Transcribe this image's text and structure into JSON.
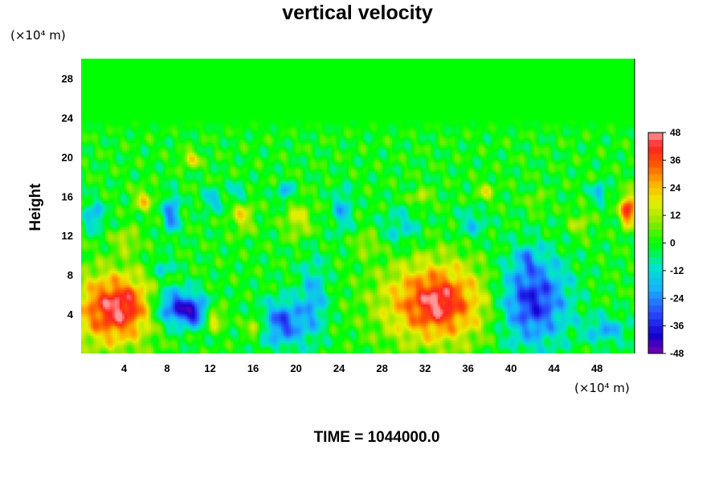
{
  "chart_data": {
    "type": "heatmap",
    "title": "vertical velocity",
    "ylabel": "Height",
    "y_unit": "(×10⁴ m)",
    "x_unit": "(×10⁴ m)",
    "footer": "TIME = 1044000.0",
    "xlim": [
      0,
      51.5
    ],
    "ylim": [
      0,
      30
    ],
    "x_ticks": [
      4,
      8,
      12,
      16,
      20,
      24,
      28,
      32,
      36,
      40,
      44,
      48
    ],
    "x_tick_labels": [
      "4",
      "8",
      "12",
      "16",
      "20",
      "24",
      "28",
      "32",
      "36",
      "40",
      "44",
      "48"
    ],
    "y_ticks": [
      4,
      8,
      12,
      16,
      20,
      24,
      28
    ],
    "y_tick_labels": [
      "4",
      "8",
      "12",
      "16",
      "20",
      "24",
      "28"
    ],
    "colorbar": {
      "range": [
        -48,
        48
      ],
      "ticks": [
        48,
        36,
        24,
        12,
        0,
        -12,
        -24,
        -36,
        -48
      ],
      "tick_labels": [
        "48",
        "36",
        "24",
        "12",
        "0",
        "-12",
        "-24",
        "-36",
        "-48"
      ],
      "colors": {
        "-48": "#7a00a8",
        "-40": "#1400d0",
        "-30": "#2a4cff",
        "-20": "#19b0ff",
        "-10": "#00e6c8",
        "0": "#00ff00",
        "10": "#9be800",
        "18": "#e8f000",
        "26": "#ffb000",
        "34": "#ff5a00",
        "42": "#ff2020",
        "48": "#ff9a9a"
      }
    },
    "features": [
      {
        "x": 3,
        "y": 4.5,
        "sx": 2.5,
        "sy": 2.6,
        "v": 42
      },
      {
        "x": 4.6,
        "y": 5,
        "sx": 1.4,
        "sy": 1.4,
        "v": 8
      },
      {
        "x": 9,
        "y": 4.7,
        "sx": 1.6,
        "sy": 1.3,
        "v": -36
      },
      {
        "x": 10.6,
        "y": 4,
        "sx": 0.8,
        "sy": 0.8,
        "v": -20
      },
      {
        "x": 12.4,
        "y": 3.6,
        "sx": 0.6,
        "sy": 0.8,
        "v": 22
      },
      {
        "x": 16.2,
        "y": 2.8,
        "sx": 0.6,
        "sy": 0.5,
        "v": 24
      },
      {
        "x": 18.8,
        "y": 3.1,
        "sx": 1.4,
        "sy": 1.6,
        "v": -30
      },
      {
        "x": 21.6,
        "y": 5.6,
        "sx": 0.9,
        "sy": 2.8,
        "v": -18
      },
      {
        "x": 33,
        "y": 5.2,
        "sx": 3.4,
        "sy": 2.9,
        "v": 40
      },
      {
        "x": 33.2,
        "y": 5.1,
        "sx": 1.1,
        "sy": 1.4,
        "v": 8
      },
      {
        "x": 42,
        "y": 5.4,
        "sx": 2.2,
        "sy": 3.1,
        "v": -36
      },
      {
        "x": 48.8,
        "y": 2.4,
        "sx": 1.4,
        "sy": 1.0,
        "v": -18
      },
      {
        "x": 1.2,
        "y": 14,
        "sx": 0.6,
        "sy": 1.0,
        "v": -20
      },
      {
        "x": 8.4,
        "y": 14.2,
        "sx": 0.5,
        "sy": 1.3,
        "v": -28
      },
      {
        "x": 12.2,
        "y": 15.6,
        "sx": 0.6,
        "sy": 0.8,
        "v": -16
      },
      {
        "x": 14.6,
        "y": 16.4,
        "sx": 0.6,
        "sy": 0.6,
        "v": -14
      },
      {
        "x": 19,
        "y": 16.4,
        "sx": 0.5,
        "sy": 0.6,
        "v": -22
      },
      {
        "x": 5.8,
        "y": 15.6,
        "sx": 0.6,
        "sy": 0.8,
        "v": 20
      },
      {
        "x": 10.2,
        "y": 19.8,
        "sx": 0.6,
        "sy": 0.5,
        "v": 22
      },
      {
        "x": 15,
        "y": 14,
        "sx": 0.7,
        "sy": 1.1,
        "v": 18
      },
      {
        "x": 20.2,
        "y": 13.6,
        "sx": 0.9,
        "sy": 1.3,
        "v": 16
      },
      {
        "x": 24.3,
        "y": 14.6,
        "sx": 0.6,
        "sy": 1.5,
        "v": -18
      },
      {
        "x": 29.8,
        "y": 12.8,
        "sx": 1.3,
        "sy": 1.4,
        "v": -12
      },
      {
        "x": 31.6,
        "y": 15.8,
        "sx": 0.7,
        "sy": 0.6,
        "v": 14
      },
      {
        "x": 36.4,
        "y": 13.2,
        "sx": 0.9,
        "sy": 1.1,
        "v": -14
      },
      {
        "x": 37.6,
        "y": 16.4,
        "sx": 0.6,
        "sy": 0.7,
        "v": 14
      },
      {
        "x": 42.4,
        "y": 15.4,
        "sx": 0.6,
        "sy": 0.7,
        "v": 10
      },
      {
        "x": 46.4,
        "y": 13.2,
        "sx": 0.7,
        "sy": 0.9,
        "v": 12
      },
      {
        "x": 48.2,
        "y": 16.4,
        "sx": 0.5,
        "sy": 0.6,
        "v": -22
      },
      {
        "x": 50.9,
        "y": 14.6,
        "sx": 0.5,
        "sy": 1.1,
        "v": 44
      },
      {
        "x": 41.5,
        "y": 9.6,
        "sx": 0.6,
        "sy": 0.8,
        "v": -14
      },
      {
        "x": 7.6,
        "y": 8.8,
        "sx": 0.7,
        "sy": 0.6,
        "v": -16
      },
      {
        "x": 4.2,
        "y": 11.6,
        "sx": 0.8,
        "sy": 0.8,
        "v": 14
      },
      {
        "x": 26.6,
        "y": 11.2,
        "sx": 0.8,
        "sy": 0.8,
        "v": 12
      }
    ]
  }
}
